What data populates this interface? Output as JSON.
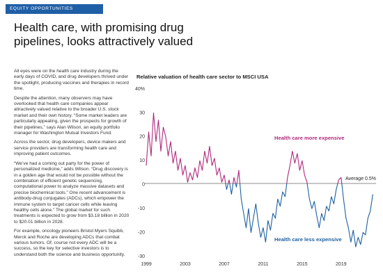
{
  "header": {
    "banner": "EQUITY OPPORTUNITIES",
    "title": "Health care, with promising drug pipelines, looks attractively valued"
  },
  "body": {
    "paragraphs": [
      "All eyes were on the health care industry during the early days of COVID, and drug developers thrived under the spotlight, producing vaccines and therapies in record time.",
      "Despite the attention, many observers may have overlooked that health care companies appear attractively valued relative to the broader U.S. stock market and their own history. “Some market leaders are particularly appealing, given the prospects for growth of their pipelines,” says Alan Wilson, an equity portfolio manager for Washington Mutual Investors Fund.",
      "Across the sector, drug developers, device makers and service providers are transforming health care and improving patient outcomes.",
      "“We’ve had a coming out party for the power of personalized medicine,” adds Wilson. “Drug discovery is in a golden age that would not be possible without the combination of efficient genetic sequencing, computational power to analyze massive datasets and precise biochemical tools.” One recent advancement is antibody-drug conjugates (ADCs), which empower the immune system to target cancer cells while leaving healthy cells alone.” The global market for such treatments is expected to grow from $3.18 billion in 2020 to $20.01 billion in 2028.",
      "For example, oncology pioneers Bristol Myers Squibb, Merck and Roche are developing ADCs that combat various tumors. Of, course not every ADC will be a success, so the key for selective investors is to understand both the science and business opportunity."
    ]
  },
  "chart_data": {
    "type": "line",
    "title": "Relative valuation of health care sector to MSCI USA",
    "x": [
      1999,
      1999.25,
      1999.5,
      1999.75,
      2000,
      2000.25,
      2000.5,
      2000.75,
      2001,
      2001.25,
      2001.5,
      2001.75,
      2002,
      2002.25,
      2002.5,
      2002.75,
      2003,
      2003.25,
      2003.5,
      2003.75,
      2004,
      2004.25,
      2004.5,
      2004.75,
      2005,
      2005.25,
      2005.5,
      2005.75,
      2006,
      2006.25,
      2006.5,
      2006.75,
      2007,
      2007.25,
      2007.5,
      2007.75,
      2008,
      2008.25,
      2008.5,
      2008.75,
      2009,
      2009.25,
      2009.5,
      2009.75,
      2010,
      2010.25,
      2010.5,
      2010.75,
      2011,
      2011.25,
      2011.5,
      2011.75,
      2012,
      2012.25,
      2012.5,
      2012.75,
      2013,
      2013.25,
      2013.5,
      2013.75,
      2014,
      2014.25,
      2014.5,
      2014.75,
      2015,
      2015.25,
      2015.5,
      2015.75,
      2016,
      2016.25,
      2016.5,
      2016.75,
      2017,
      2017.25,
      2017.5,
      2017.75,
      2018,
      2018.25,
      2018.5,
      2018.75,
      2019,
      2019.25,
      2019.5,
      2019.75,
      2020,
      2020.25,
      2020.5,
      2020.75,
      2021,
      2021.25,
      2021.5,
      2021.75,
      2022,
      2022.25
    ],
    "values": [
      8,
      22,
      12,
      30,
      18,
      27,
      14,
      24,
      20,
      12,
      18,
      9,
      14,
      6,
      11,
      4,
      8,
      1,
      5,
      2,
      7,
      3,
      10,
      6,
      14,
      9,
      16,
      8,
      11,
      4,
      7,
      1,
      4,
      -2,
      2,
      -4,
      3,
      -1,
      6,
      -6,
      -12,
      -18,
      -10,
      -20,
      -14,
      -8,
      -16,
      -22,
      -18,
      -24,
      -15,
      -19,
      -12,
      -14,
      -6,
      -9,
      -3,
      -5,
      3,
      8,
      14,
      9,
      13,
      6,
      10,
      4,
      1,
      -6,
      -10,
      -7,
      -13,
      -18,
      -12,
      -15,
      -9,
      -11,
      -5,
      -8,
      -2,
      2,
      3,
      -6,
      -14,
      -18,
      -24,
      -19,
      -26,
      -22,
      -25,
      -20,
      -21,
      -14,
      -11,
      -4
    ],
    "above_color": "#b0287c",
    "below_color": "#1d5f9f",
    "average": 0.5,
    "average_label": "Average 0.5%",
    "annotations": [
      "Health care more expensive",
      "Health care less expensive"
    ],
    "xlim": [
      1999,
      2022.3
    ],
    "xticks": [
      1999,
      2003,
      2007,
      2011,
      2015,
      2019
    ],
    "ylim": [
      -30,
      40
    ],
    "yticks": [
      -30,
      -20,
      -10,
      0,
      10,
      20,
      30,
      {
        "value": 40,
        "label": "40%"
      }
    ]
  }
}
